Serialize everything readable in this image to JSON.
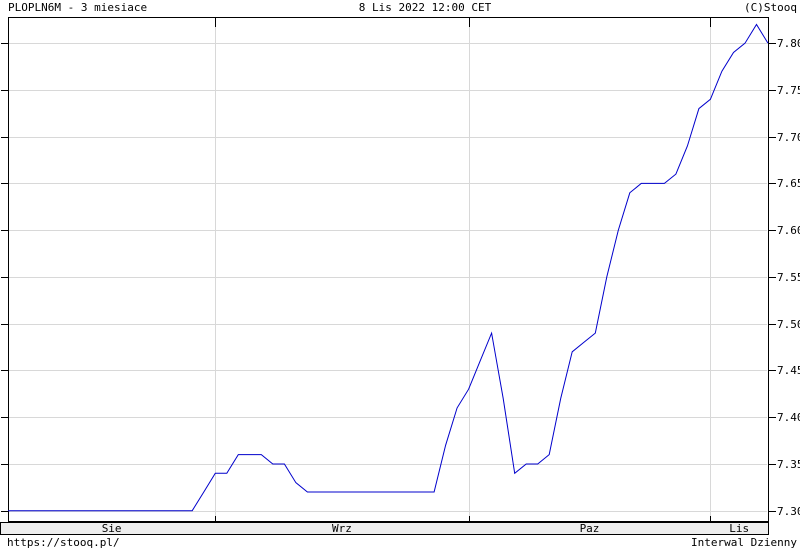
{
  "header": {
    "title": "PLOPLN6M - 3 miesiace",
    "timestamp": "8 Lis 2022 12:00 CET",
    "copyright": "(C)Stooq"
  },
  "footer": {
    "url": "https://stooq.pl/",
    "interval": "Interwal Dzienny"
  },
  "colors": {
    "background": "#ffffff",
    "line": "#0000cc",
    "grid": "#d8d8d8",
    "frame": "#000000",
    "tick": "#000000",
    "band_bg": "#eeeeee",
    "text": "#000000"
  },
  "chart_data": {
    "type": "line",
    "title": "PLOPLN6M - 3 miesiace",
    "xlabel": "",
    "ylabel": "",
    "legend": "none",
    "grid": true,
    "interval": "daily",
    "x_range_dates": [
      "2022-08-08",
      "2022-11-08"
    ],
    "y_axis": {
      "min": 7.289,
      "max": 7.828,
      "ticks": [
        7.3,
        7.35,
        7.4,
        7.45,
        7.5,
        7.55,
        7.6,
        7.65,
        7.7,
        7.75,
        7.8
      ],
      "label_side": "right"
    },
    "x_axis": {
      "months": [
        {
          "label": "Sie",
          "start_index": 0
        },
        {
          "label": "Wrz",
          "start_index": 18
        },
        {
          "label": "Paz",
          "start_index": 40
        },
        {
          "label": "Lis",
          "start_index": 61
        }
      ]
    },
    "series": [
      {
        "name": "PLOPLN6M",
        "color": "#0000cc",
        "dates": [
          "2022-08-08",
          "2022-08-09",
          "2022-08-10",
          "2022-08-11",
          "2022-08-12",
          "2022-08-15",
          "2022-08-16",
          "2022-08-17",
          "2022-08-18",
          "2022-08-19",
          "2022-08-22",
          "2022-08-23",
          "2022-08-24",
          "2022-08-25",
          "2022-08-26",
          "2022-08-29",
          "2022-08-30",
          "2022-08-31",
          "2022-09-01",
          "2022-09-02",
          "2022-09-05",
          "2022-09-06",
          "2022-09-07",
          "2022-09-08",
          "2022-09-09",
          "2022-09-12",
          "2022-09-13",
          "2022-09-14",
          "2022-09-15",
          "2022-09-16",
          "2022-09-19",
          "2022-09-20",
          "2022-09-21",
          "2022-09-22",
          "2022-09-23",
          "2022-09-26",
          "2022-09-27",
          "2022-09-28",
          "2022-09-29",
          "2022-09-30",
          "2022-10-03",
          "2022-10-04",
          "2022-10-05",
          "2022-10-06",
          "2022-10-07",
          "2022-10-10",
          "2022-10-11",
          "2022-10-12",
          "2022-10-13",
          "2022-10-14",
          "2022-10-17",
          "2022-10-18",
          "2022-10-19",
          "2022-10-20",
          "2022-10-21",
          "2022-10-24",
          "2022-10-25",
          "2022-10-26",
          "2022-10-27",
          "2022-10-28",
          "2022-10-31",
          "2022-11-01",
          "2022-11-02",
          "2022-11-03",
          "2022-11-04",
          "2022-11-07",
          "2022-11-08"
        ],
        "values": [
          7.3,
          7.3,
          7.3,
          7.3,
          7.3,
          7.3,
          7.3,
          7.3,
          7.3,
          7.3,
          7.3,
          7.3,
          7.3,
          7.3,
          7.3,
          7.3,
          7.3,
          7.32,
          7.34,
          7.34,
          7.36,
          7.36,
          7.36,
          7.35,
          7.35,
          7.33,
          7.32,
          7.32,
          7.32,
          7.32,
          7.32,
          7.32,
          7.32,
          7.32,
          7.32,
          7.32,
          7.32,
          7.32,
          7.37,
          7.41,
          7.43,
          7.46,
          7.49,
          7.42,
          7.34,
          7.35,
          7.35,
          7.36,
          7.42,
          7.47,
          7.48,
          7.49,
          7.55,
          7.6,
          7.64,
          7.65,
          7.65,
          7.65,
          7.66,
          7.69,
          7.73,
          7.74,
          7.77,
          7.79,
          7.8,
          7.82,
          7.8
        ]
      }
    ]
  }
}
